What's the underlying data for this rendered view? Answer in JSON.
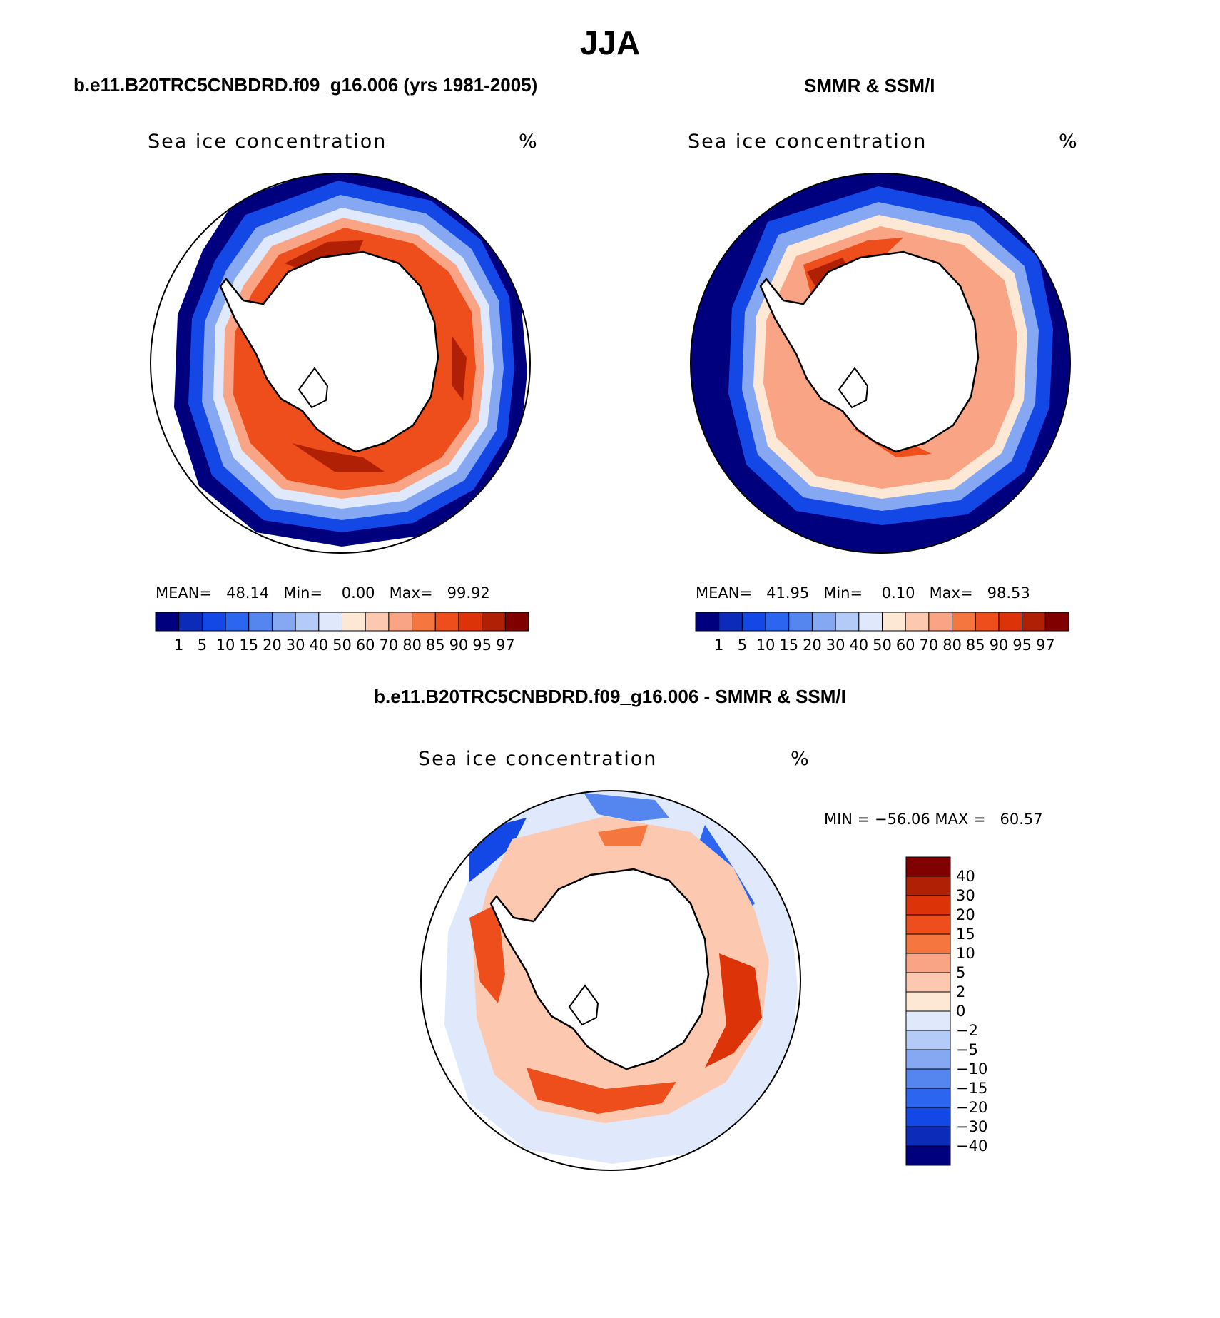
{
  "figure": {
    "main_title": "JJA",
    "left_case_title": "b.e11.B20TRC5CNBDRD.f09_g16.006 (yrs 1981-2005)",
    "right_case_title": "SMMR & SSM/I",
    "diff_title": "b.e11.B20TRC5CNBDRD.f09_g16.006 - SMMR & SSM/I"
  },
  "panels": {
    "model": {
      "variable": "Sea ice concentration",
      "units": "%",
      "stats": "MEAN=   48.14   Min=    0.00   Max=   99.92"
    },
    "obs": {
      "variable": "Sea ice concentration",
      "units": "%",
      "stats": "MEAN=   41.95   Min=    0.10   Max=   98.53"
    },
    "diff": {
      "variable": "Sea ice concentration",
      "units": "%",
      "stats": "MIN = −56.06 MAX =   60.57"
    }
  },
  "colorbars": {
    "concentration_levels": [
      "1",
      "5",
      "10",
      "15",
      "20",
      "30",
      "40",
      "50",
      "60",
      "70",
      "80",
      "85",
      "90",
      "95",
      "97"
    ],
    "concentration_colors": [
      "#00007f",
      "#0b2bb8",
      "#1448e6",
      "#2c66f0",
      "#5585ee",
      "#86a8f2",
      "#b4cbf8",
      "#dfe9fb",
      "#fde8d6",
      "#fcc9b0",
      "#f9a585",
      "#f5773f",
      "#ed4e1b",
      "#dc3309",
      "#b02005",
      "#800000"
    ],
    "difference_levels": [
      "40",
      "30",
      "20",
      "15",
      "10",
      "5",
      "2",
      "0",
      "−2",
      "−5",
      "−10",
      "−15",
      "−20",
      "−30",
      "−40"
    ],
    "difference_colors": [
      "#800000",
      "#b02005",
      "#dc3309",
      "#ed4e1b",
      "#f5773f",
      "#f9a585",
      "#fcc9b0",
      "#fde8d6",
      "#dfe9fb",
      "#b4cbf8",
      "#86a8f2",
      "#5585ee",
      "#2c66f0",
      "#1448e6",
      "#0b2bb8",
      "#00007f"
    ]
  },
  "map": {
    "projection": "south-polar-stereographic",
    "region": "Antarctica / Southern Ocean"
  }
}
